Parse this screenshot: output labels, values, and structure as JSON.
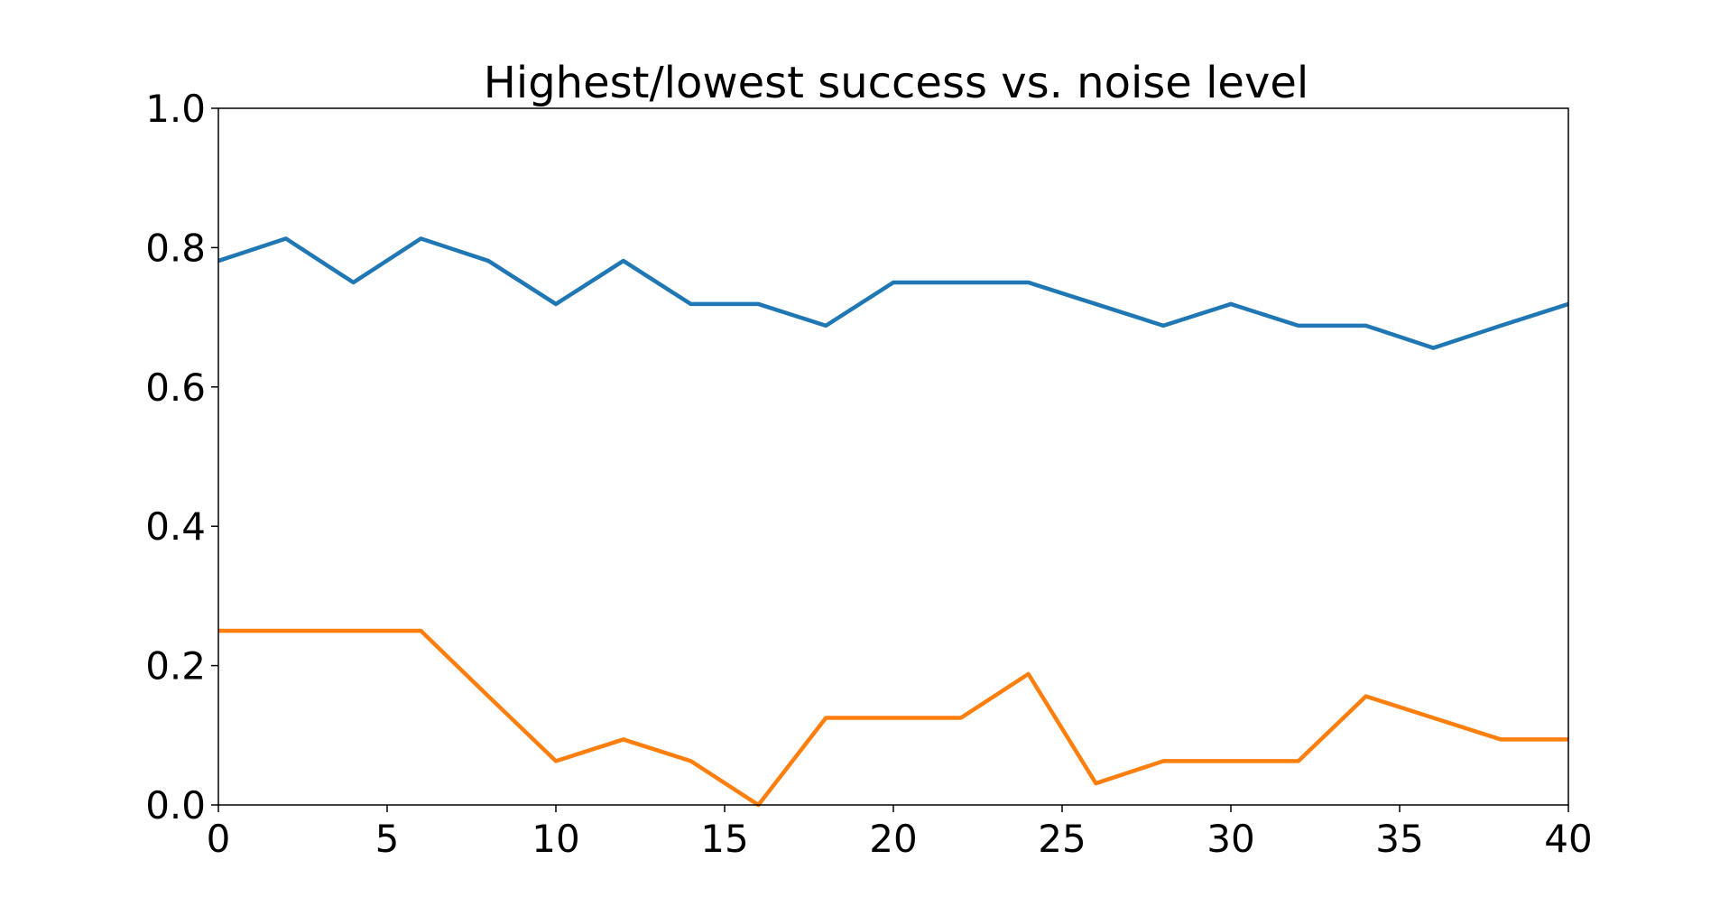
{
  "chart_data": {
    "type": "line",
    "title": "Highest/lowest success vs. noise level",
    "xlabel": "",
    "ylabel": "",
    "xlim": [
      0,
      40
    ],
    "ylim": [
      0.0,
      1.0
    ],
    "xticks": [
      0,
      5,
      10,
      15,
      20,
      25,
      30,
      35,
      40
    ],
    "xtick_labels": [
      "0",
      "5",
      "10",
      "15",
      "20",
      "25",
      "30",
      "35",
      "40"
    ],
    "yticks": [
      0.0,
      0.2,
      0.4,
      0.6,
      0.8,
      1.0
    ],
    "ytick_labels": [
      "0.0",
      "0.2",
      "0.4",
      "0.6",
      "0.8",
      "1.0"
    ],
    "grid": false,
    "x": [
      0,
      2,
      4,
      6,
      8,
      10,
      12,
      14,
      16,
      18,
      20,
      22,
      24,
      26,
      28,
      30,
      32,
      34,
      36,
      38,
      40
    ],
    "series": [
      {
        "color": "#1f77b4",
        "values": [
          0.781,
          0.813,
          0.75,
          0.813,
          0.781,
          0.719,
          0.781,
          0.719,
          0.719,
          0.688,
          0.75,
          0.75,
          0.75,
          0.719,
          0.688,
          0.719,
          0.688,
          0.688,
          0.656,
          0.688,
          0.719
        ]
      },
      {
        "color": "#ff7f0e",
        "values": [
          0.25,
          0.25,
          0.25,
          0.25,
          0.156,
          0.063,
          0.094,
          0.063,
          0.0,
          0.125,
          0.125,
          0.125,
          0.188,
          0.031,
          0.063,
          0.063,
          0.063,
          0.156,
          0.125,
          0.094,
          0.094
        ]
      }
    ]
  }
}
